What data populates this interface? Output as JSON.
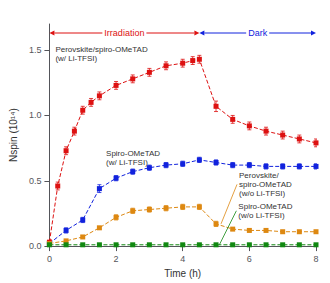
{
  "chart_data": {
    "type": "line",
    "marker": "square",
    "line_style": "dashed",
    "xlabel": "Time (h)",
    "ylabel": "Nspin (10¹⁴)",
    "xlim": [
      0,
      8
    ],
    "ylim": [
      0,
      1.7
    ],
    "xticks": [
      0,
      2,
      4,
      6,
      8
    ],
    "yticks": [
      {
        "value": 0.0,
        "label": "0.0"
      },
      0.5,
      {
        "value": 1.0,
        "label": "1.0"
      },
      1.5
    ],
    "grid": false,
    "series": [
      {
        "color": "#dd1111",
        "x": [
          0.0,
          0.25,
          0.5,
          0.75,
          1.0,
          1.25,
          1.5,
          2.0,
          2.5,
          3.0,
          3.5,
          4.0,
          4.3,
          4.5,
          5.0,
          5.5,
          6.0,
          6.5,
          7.0,
          7.5,
          8.0
        ],
        "values": [
          0.03,
          0.46,
          0.73,
          0.88,
          1.04,
          1.1,
          1.15,
          1.23,
          1.28,
          1.33,
          1.38,
          1.4,
          1.42,
          1.43,
          1.07,
          0.97,
          0.92,
          0.88,
          0.85,
          0.82,
          0.79
        ],
        "yerr": [
          0.02,
          0.03,
          0.03,
          0.03,
          0.03,
          0.03,
          0.03,
          0.03,
          0.03,
          0.03,
          0.03,
          0.03,
          0.03,
          0.03,
          0.04,
          0.03,
          0.03,
          0.03,
          0.03,
          0.03,
          0.03
        ]
      },
      {
        "color": "#1122dd",
        "x": [
          0.0,
          0.5,
          1.0,
          1.5,
          2.0,
          2.5,
          3.0,
          3.5,
          4.0,
          4.5,
          5.0,
          5.5,
          6.0,
          6.5,
          7.0,
          7.5,
          8.0
        ],
        "values": [
          0.02,
          0.12,
          0.2,
          0.44,
          0.52,
          0.57,
          0.6,
          0.62,
          0.63,
          0.66,
          0.64,
          0.62,
          0.62,
          0.61,
          0.61,
          0.61,
          0.61
        ],
        "yerr": [
          0.01,
          0.02,
          0.02,
          0.03,
          0.02,
          0.02,
          0.02,
          0.02,
          0.02,
          0.02,
          0.02,
          0.02,
          0.02,
          0.02,
          0.02,
          0.02,
          0.02
        ]
      },
      {
        "color": "#dd8811",
        "x": [
          0.0,
          0.5,
          1.0,
          1.5,
          2.0,
          2.5,
          3.0,
          3.5,
          4.0,
          4.5,
          5.0,
          5.5,
          6.0,
          6.5,
          7.0,
          7.5,
          8.0
        ],
        "values": [
          0.02,
          0.04,
          0.07,
          0.14,
          0.22,
          0.27,
          0.28,
          0.29,
          0.3,
          0.3,
          0.17,
          0.13,
          0.12,
          0.12,
          0.11,
          0.11,
          0.11
        ],
        "yerr": [
          0.01,
          0.01,
          0.01,
          0.01,
          0.02,
          0.02,
          0.02,
          0.02,
          0.02,
          0.02,
          0.02,
          0.01,
          0.01,
          0.01,
          0.01,
          0.01,
          0.01
        ]
      },
      {
        "color": "#118811",
        "x": [
          0.0,
          0.5,
          1.0,
          1.5,
          2.0,
          2.5,
          3.0,
          3.5,
          4.0,
          4.5,
          5.0,
          5.5,
          6.0,
          6.5,
          7.0,
          7.5,
          8.0
        ],
        "values": [
          0.01,
          0.01,
          0.01,
          0.01,
          0.01,
          0.01,
          0.01,
          0.01,
          0.01,
          0.01,
          0.01,
          0.01,
          0.01,
          0.01,
          0.01,
          0.01,
          0.01
        ],
        "yerr": [
          0.005,
          0.005,
          0.005,
          0.005,
          0.005,
          0.005,
          0.005,
          0.005,
          0.005,
          0.005,
          0.005,
          0.005,
          0.005,
          0.005,
          0.005,
          0.005,
          0.005
        ]
      }
    ],
    "phases": [
      {
        "text": "Irradiation",
        "color": "#dd1111",
        "start": 0.0,
        "end": 4.5
      },
      {
        "text": "Dark",
        "color": "#1122dd",
        "start": 4.5,
        "end": 8.0
      }
    ],
    "annotations": [
      {
        "text": "Perovskite/\nspiro-OMeTAD\n(w/o Li-TFSI)",
        "x": 5.15,
        "y": 0.17,
        "color": "#dd8811"
      },
      {
        "text": "Spiro-OMeTAD\n(w/o Li-TFSI)",
        "x": 5.1,
        "y": 0.01,
        "color": "#118811"
      },
      {
        "text": "Perovskite/spiro-OMeTAD\n(w/ Li-TFSI)",
        "x": 0.18,
        "y": 1.54
      },
      {
        "text": "Spiro-OMeTAD\n(w/ Li-TFSI)",
        "x": 1.7,
        "y": 0.74
      }
    ]
  }
}
